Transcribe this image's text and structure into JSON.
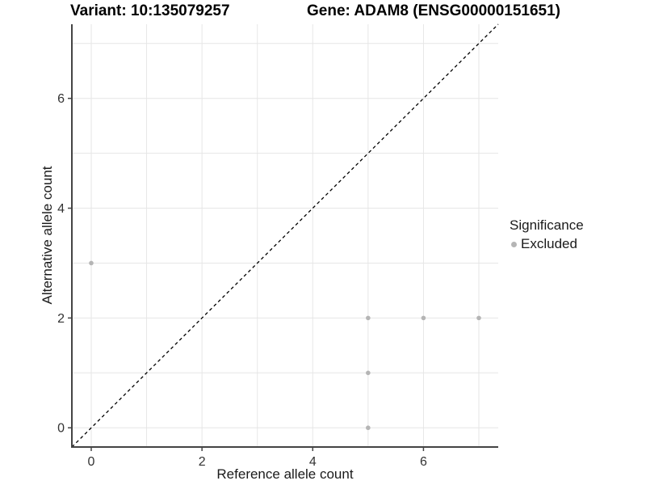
{
  "titles": {
    "left": "Variant: 10:135079257",
    "right": "Gene: ADAM8 (ENSG00000151651)"
  },
  "legend": {
    "title": "Significance",
    "entries": [
      {
        "label": "Excluded",
        "color": "#b5b5b5"
      }
    ]
  },
  "chart_data": {
    "type": "scatter",
    "title": "Variant: 10:135079257  /  Gene: ADAM8 (ENSG00000151651)",
    "xlabel": "Reference allele count",
    "ylabel": "Alternative allele count",
    "xlim": [
      -0.35,
      7.35
    ],
    "ylim": [
      -0.35,
      7.35
    ],
    "xticks": [
      0,
      2,
      4,
      6
    ],
    "yticks": [
      0,
      2,
      4,
      6
    ],
    "gridlines": [
      0,
      1,
      2,
      3,
      4,
      5,
      6,
      7
    ],
    "grid_on": true,
    "legend_position": "right",
    "series": [
      {
        "name": "Excluded",
        "color": "#b5b5b5",
        "points": [
          [
            0,
            3
          ],
          [
            5,
            2
          ],
          [
            6,
            2
          ],
          [
            7,
            2
          ],
          [
            5,
            1
          ],
          [
            5,
            0
          ]
        ]
      }
    ],
    "reference_line": {
      "type": "identity",
      "equation": "y = x",
      "style": "dashed",
      "color": "#000000"
    },
    "colors": {
      "grid": "#e6e6e6",
      "axis": "#444444",
      "tick_label": "#333333",
      "point": "#b5b5b5"
    }
  }
}
